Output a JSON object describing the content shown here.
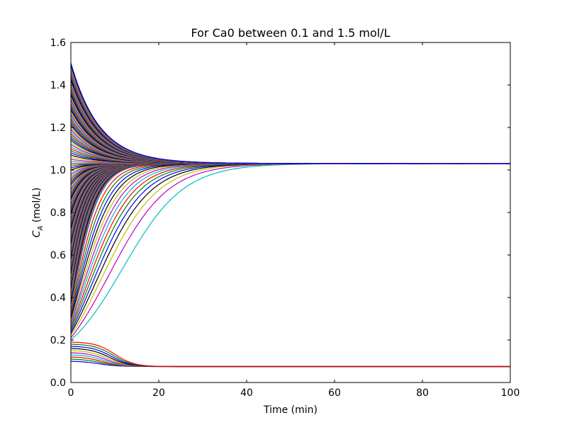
{
  "chart_data": {
    "type": "line",
    "title": "For Ca0 between 0.1 and 1.5 mol/L",
    "xlabel": "Time (min)",
    "ylabel": "C_A (mol/L)",
    "ylabel_main": "C",
    "ylabel_sub": "A",
    "ylabel_units": " (mol/L)",
    "xlim": [
      0,
      100
    ],
    "ylim": [
      0.0,
      1.6
    ],
    "xticks": [
      "0",
      "20",
      "40",
      "60",
      "80",
      "100"
    ],
    "yticks": [
      "0.0",
      "0.2",
      "0.4",
      "0.6",
      "0.8",
      "1.0",
      "1.2",
      "1.4",
      "1.6"
    ],
    "grid": false,
    "legend": "none",
    "colors": [
      "#0000ff",
      "#008000",
      "#ff0000",
      "#00bfbf",
      "#bf00bf",
      "#bfbf00",
      "#000000"
    ],
    "ca0_range": [
      0.1,
      1.5
    ],
    "ca0_step": 0.01,
    "steady_high": 1.03,
    "steady_low": 0.075,
    "example_series": [
      {
        "x": [
          0,
          10,
          20,
          30,
          40,
          50,
          60,
          70,
          80,
          90,
          100
        ],
        "values": [
          0.2,
          0.215,
          0.29,
          0.54,
          0.83,
          0.97,
          1.01,
          1.025,
          1.028,
          1.03,
          1.03
        ]
      },
      {
        "x": [
          0,
          10,
          20,
          30,
          40,
          50,
          60,
          70,
          80,
          90,
          100
        ],
        "values": [
          0.19,
          0.14,
          0.078,
          0.075,
          0.075,
          0.075,
          0.075,
          0.075,
          0.075,
          0.075,
          0.075
        ]
      },
      {
        "x": [
          0,
          10,
          20,
          30,
          40,
          50,
          60,
          70,
          80,
          90,
          100
        ],
        "values": [
          1.5,
          1.18,
          1.07,
          1.045,
          1.035,
          1.032,
          1.03,
          1.03,
          1.03,
          1.03,
          1.03
        ]
      }
    ]
  }
}
